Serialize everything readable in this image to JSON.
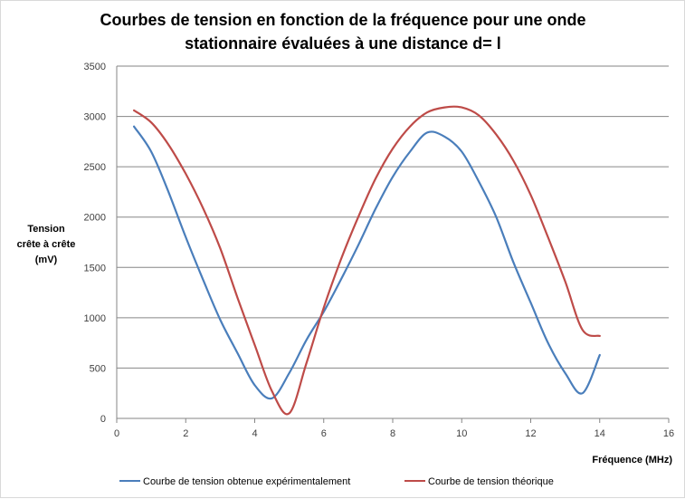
{
  "chart_data": {
    "type": "line",
    "title_lines": [
      "Courbes de tension en fonction de la fréquence  pour une onde",
      "stationnaire évaluées à une distance d= l"
    ],
    "xlabel": "Fréquence (MHz)",
    "ylabel_lines": [
      "Tension",
      "crête à crête",
      "(mV)"
    ],
    "xlim": [
      0,
      16
    ],
    "ylim": [
      0,
      3500
    ],
    "xticks": [
      0,
      2,
      4,
      6,
      8,
      10,
      12,
      14,
      16
    ],
    "yticks": [
      0,
      500,
      1000,
      1500,
      2000,
      2500,
      3000,
      3500
    ],
    "grid": "horizontal",
    "legend_position": "bottom",
    "series": [
      {
        "name": "Courbe de tension obtenue expérimentalement",
        "color": "#4a7ebb",
        "points": [
          [
            0.5,
            2900
          ],
          [
            1.0,
            2650
          ],
          [
            1.5,
            2250
          ],
          [
            2.0,
            1800
          ],
          [
            2.5,
            1380
          ],
          [
            3.0,
            980
          ],
          [
            3.5,
            650
          ],
          [
            4.0,
            330
          ],
          [
            4.5,
            200
          ],
          [
            5.0,
            450
          ],
          [
            5.5,
            780
          ],
          [
            6.0,
            1060
          ],
          [
            6.5,
            1380
          ],
          [
            7.0,
            1720
          ],
          [
            7.5,
            2080
          ],
          [
            8.0,
            2400
          ],
          [
            8.5,
            2650
          ],
          [
            9.0,
            2840
          ],
          [
            9.5,
            2800
          ],
          [
            10.0,
            2650
          ],
          [
            10.5,
            2350
          ],
          [
            11.0,
            2000
          ],
          [
            11.5,
            1550
          ],
          [
            12.0,
            1150
          ],
          [
            12.5,
            750
          ],
          [
            13.0,
            450
          ],
          [
            13.5,
            250
          ],
          [
            14.0,
            630
          ]
        ]
      },
      {
        "name": "Courbe de tension théorique",
        "color": "#be4b48",
        "points": [
          [
            0.5,
            3060
          ],
          [
            1.0,
            2940
          ],
          [
            1.5,
            2720
          ],
          [
            2.0,
            2430
          ],
          [
            2.5,
            2090
          ],
          [
            3.0,
            1690
          ],
          [
            3.5,
            1200
          ],
          [
            4.0,
            730
          ],
          [
            4.5,
            270
          ],
          [
            5.0,
            50
          ],
          [
            5.5,
            550
          ],
          [
            6.0,
            1100
          ],
          [
            6.5,
            1580
          ],
          [
            7.0,
            2000
          ],
          [
            7.5,
            2380
          ],
          [
            8.0,
            2680
          ],
          [
            8.5,
            2900
          ],
          [
            9.0,
            3040
          ],
          [
            9.5,
            3090
          ],
          [
            10.0,
            3090
          ],
          [
            10.5,
            3010
          ],
          [
            11.0,
            2820
          ],
          [
            11.5,
            2560
          ],
          [
            12.0,
            2220
          ],
          [
            12.5,
            1800
          ],
          [
            13.0,
            1360
          ],
          [
            13.5,
            880
          ],
          [
            14.0,
            820
          ]
        ]
      }
    ]
  }
}
